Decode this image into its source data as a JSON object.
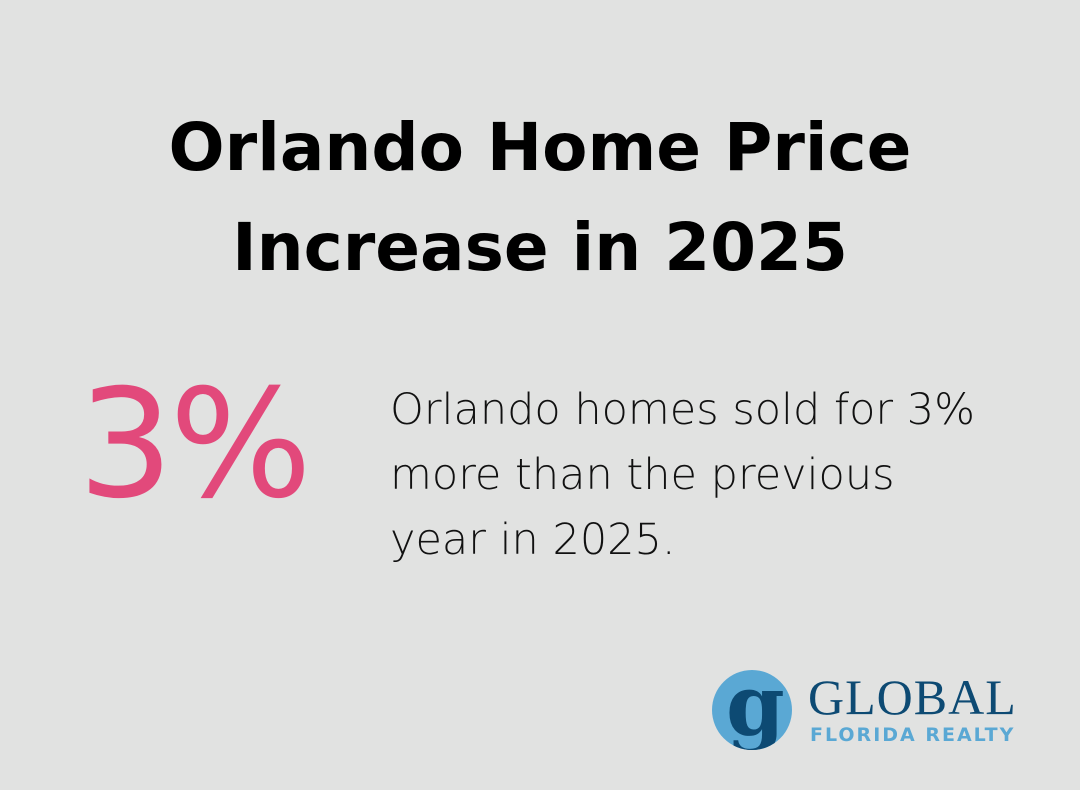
{
  "title": {
    "line1": "Orlando Home Price",
    "line2": "Increase in 2025"
  },
  "stat": {
    "value": "3%",
    "color": "#e2497b"
  },
  "description": {
    "line1": "Orlando homes sold for 3%",
    "line2": "more than the previous",
    "line3": "year in 2025."
  },
  "logo": {
    "mark": "g",
    "name": "GLOBAL",
    "subname": "FLORIDA REALTY",
    "primary_color": "#0d4a73",
    "secondary_color": "#5aa8d4"
  }
}
